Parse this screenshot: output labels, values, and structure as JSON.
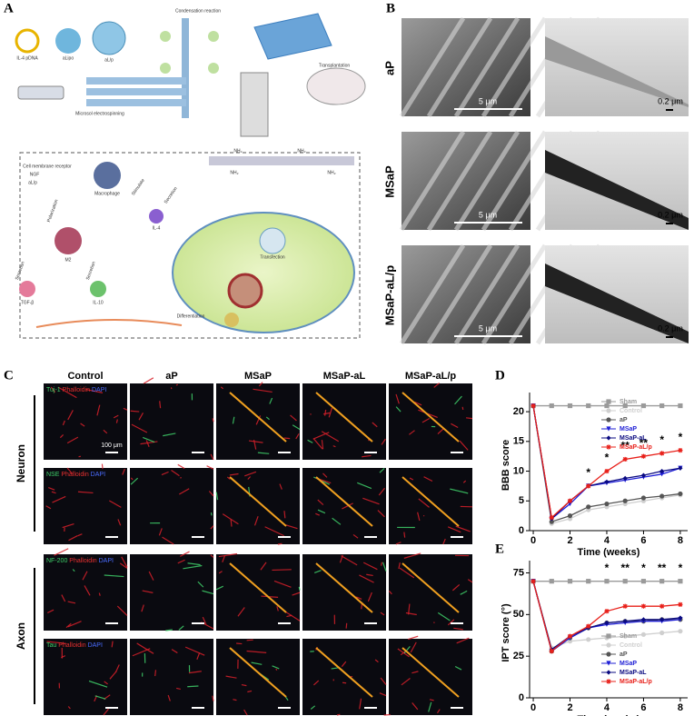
{
  "panel_a": {
    "label": "A",
    "texts": [
      "IL-4 pDNA",
      "aLipo",
      "aL/p",
      "Condensation reaction",
      "Microsol electrospinning",
      "Transplantation",
      "Cell membrane receptor",
      "NGF",
      "aL/p",
      "Macrophage",
      "Stimulate",
      "IL-4",
      "Secretion",
      "Polarization",
      "M2",
      "Secretion",
      "Secretion",
      "TGF-β",
      "IL-10",
      "Transfection",
      "Differentiation",
      "NH₂",
      "NH₂",
      "NH₂",
      "NH₂"
    ]
  },
  "panel_b": {
    "label": "B",
    "rows": [
      "aP",
      "MSaP",
      "MSaP-aL/p"
    ],
    "scale_left": "5 μm",
    "scale_right": "0.2 μm"
  },
  "panel_c": {
    "label": "C",
    "columns": [
      "Control",
      "aP",
      "MSaP",
      "MSaP-aL",
      "MSaP-aL/p"
    ],
    "groups": [
      "Neuron",
      "Axon"
    ],
    "stains": [
      {
        "marker": "Tuj-1",
        "phalloidin": "Phalloidin",
        "dapi": "DAPI"
      },
      {
        "marker": "NSE",
        "phalloidin": "Phalloidin",
        "dapi": "DAPI"
      },
      {
        "marker": "NF-200",
        "phalloidin": "Phalloidin",
        "dapi": "DAPI"
      },
      {
        "marker": "Tau",
        "phalloidin": "Phalloidin",
        "dapi": "DAPI"
      }
    ],
    "scale": "100 μm"
  },
  "chart_data": [
    {
      "type": "line",
      "panel": "D",
      "x_label": "Time (weeks)",
      "y_label": "BBB score",
      "x": [
        0,
        1,
        2,
        3,
        4,
        5,
        6,
        7,
        8
      ],
      "xlim": [
        -0.2,
        8.4
      ],
      "xticks": [
        0,
        2,
        4,
        6,
        8
      ],
      "ylim": [
        0,
        22
      ],
      "yticks": [
        0,
        5,
        10,
        15,
        20
      ],
      "grid": false,
      "legend": "upper right",
      "series": [
        {
          "name": "Sham",
          "color": "#9a9a9a",
          "values": [
            21,
            21,
            21,
            21,
            21,
            21,
            21,
            21,
            21
          ]
        },
        {
          "name": "Control",
          "color": "#cfcfcf",
          "values": [
            21,
            1.2,
            2,
            3.5,
            4,
            4.5,
            5,
            5.5,
            6
          ]
        },
        {
          "name": "aP",
          "color": "#555555",
          "values": [
            21,
            1.5,
            2.5,
            4,
            4.5,
            5,
            5.5,
            5.8,
            6.2
          ]
        },
        {
          "name": "MSaP",
          "color": "#1f1fd6",
          "values": [
            21,
            2,
            4.5,
            7.5,
            8,
            8.5,
            9,
            9.5,
            10.5
          ]
        },
        {
          "name": "MSaP-aL",
          "color": "#0a0a80",
          "values": [
            21,
            2,
            5,
            7.5,
            8.2,
            8.8,
            9.3,
            10,
            10.5
          ]
        },
        {
          "name": "MSaP-aL/p",
          "color": "#e8201a",
          "values": [
            21,
            2.2,
            5,
            7.5,
            10,
            12,
            12.5,
            13,
            13.5
          ]
        }
      ],
      "annotations": [
        {
          "x": 3,
          "text": "*"
        },
        {
          "x": 4,
          "text": "*"
        },
        {
          "x": 5,
          "text": "**"
        },
        {
          "x": 6,
          "text": "**"
        },
        {
          "x": 7,
          "text": "*"
        },
        {
          "x": 8,
          "text": "*"
        }
      ]
    },
    {
      "type": "line",
      "panel": "E",
      "x_label": "Time (weeks)",
      "y_label": "IPT score (°)",
      "x": [
        0,
        1,
        2,
        3,
        4,
        5,
        6,
        7,
        8
      ],
      "xlim": [
        -0.2,
        8.4
      ],
      "xticks": [
        0,
        2,
        4,
        6,
        8
      ],
      "ylim": [
        0,
        78
      ],
      "yticks": [
        0,
        25,
        50,
        75
      ],
      "grid": false,
      "legend": "lower right",
      "series": [
        {
          "name": "Sham",
          "color": "#9a9a9a",
          "values": [
            70,
            70,
            70,
            70,
            70,
            70,
            70,
            70,
            70
          ]
        },
        {
          "name": "Control",
          "color": "#cfcfcf",
          "values": [
            70,
            30,
            34,
            35,
            36,
            37,
            38,
            39,
            40
          ]
        },
        {
          "name": "aP",
          "color": "#555555",
          "values": [
            70,
            28,
            36,
            42,
            45,
            46,
            46,
            47,
            47
          ]
        },
        {
          "name": "MSaP",
          "color": "#1f1fd6",
          "values": [
            70,
            28,
            36,
            42,
            44,
            45,
            46,
            46,
            47
          ]
        },
        {
          "name": "MSaP-aL",
          "color": "#0a0a80",
          "values": [
            70,
            29,
            37,
            42,
            45,
            46,
            47,
            47,
            48
          ]
        },
        {
          "name": "MSaP-aL/p",
          "color": "#e8201a",
          "values": [
            70,
            28,
            37,
            43,
            52,
            55,
            55,
            55,
            56
          ]
        }
      ],
      "annotations": [
        {
          "x": 4,
          "text": "*"
        },
        {
          "x": 5,
          "text": "**"
        },
        {
          "x": 6,
          "text": "*"
        },
        {
          "x": 7,
          "text": "**"
        },
        {
          "x": 8,
          "text": "*"
        }
      ]
    }
  ]
}
